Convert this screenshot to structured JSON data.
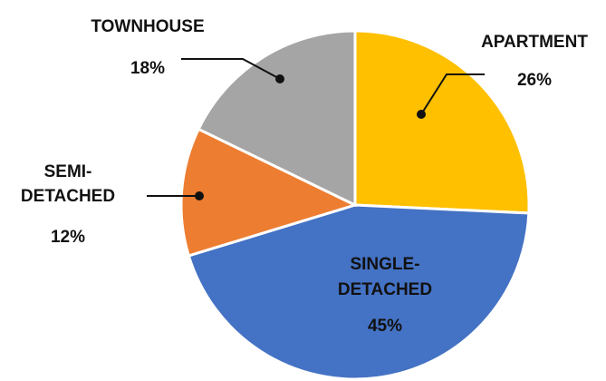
{
  "chart_data": {
    "type": "pie",
    "categories": [
      [
        "APARTMENT"
      ],
      [
        "SINGLE-",
        "DETACHED"
      ],
      [
        "SEMI-",
        "DETACHED"
      ],
      [
        "TOWNHOUSE"
      ]
    ],
    "values": [
      26,
      45,
      12,
      18
    ],
    "value_labels": [
      "26%",
      "45%",
      "12%",
      "18%"
    ],
    "colors": [
      "#FFC000",
      "#4472C4",
      "#ED7D31",
      "#A5A5A5"
    ]
  }
}
